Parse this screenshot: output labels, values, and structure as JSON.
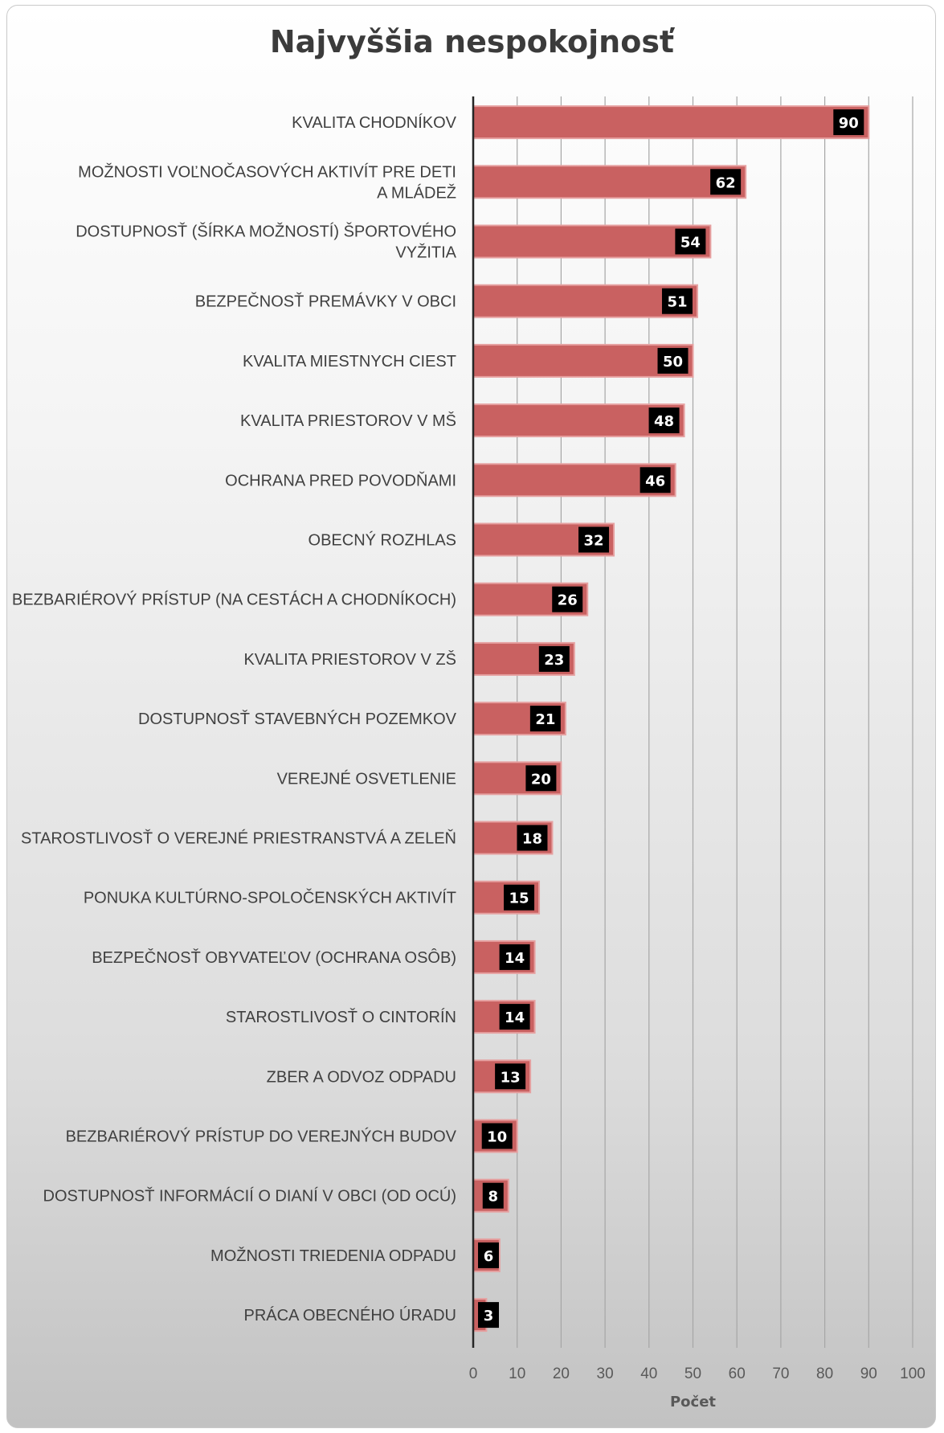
{
  "chart_data": {
    "type": "bar",
    "orientation": "horizontal",
    "title": "Najvyššia nespokojnosť",
    "xlabel": "Počet",
    "ylabel": "",
    "xlim": [
      0,
      100
    ],
    "ticks": [
      0,
      10,
      20,
      30,
      40,
      50,
      60,
      70,
      80,
      90,
      100
    ],
    "grid": true,
    "legend": "none",
    "bar_color": "#c96161",
    "label_box_color": "#000000",
    "categories": [
      [
        "KVALITA CHODNÍKOV"
      ],
      [
        "MOŽNOSTI VOĽNOČASOVÝCH AKTIVÍT PRE DETI",
        "A MLÁDEŽ"
      ],
      [
        "DOSTUPNOSŤ (ŠÍRKA MOŽNOSTÍ) ŠPORTOVÉHO",
        "VYŽITIA"
      ],
      [
        "BEZPEČNOSŤ PREMÁVKY V OBCI"
      ],
      [
        "KVALITA MIESTNYCH CIEST"
      ],
      [
        "KVALITA PRIESTOROV V MŠ"
      ],
      [
        "OCHRANA PRED POVODŇAMI"
      ],
      [
        "OBECNÝ ROZHLAS"
      ],
      [
        "BEZBARIÉROVÝ PRÍSTUP (NA CESTÁCH A CHODNÍKOCH)"
      ],
      [
        "KVALITA PRIESTOROV V ZŠ"
      ],
      [
        "DOSTUPNOSŤ STAVEBNÝCH POZEMKOV"
      ],
      [
        "VEREJNÉ OSVETLENIE"
      ],
      [
        "STAROSTLIVOSŤ O VEREJNÉ PRIESTRANSTVÁ A ZELEŇ"
      ],
      [
        "PONUKA KULTÚRNO-SPOLOČENSKÝCH AKTIVÍT"
      ],
      [
        "BEZPEČNOSŤ OBYVATEĽOV (OCHRANA OSÔB)"
      ],
      [
        "STAROSTLIVOSŤ O CINTORÍN"
      ],
      [
        "ZBER A ODVOZ ODPADU"
      ],
      [
        "BEZBARIÉROVÝ PRÍSTUP DO VEREJNÝCH BUDOV"
      ],
      [
        "DOSTUPNOSŤ INFORMÁCIÍ O DIANÍ V OBCI (OD OCÚ)"
      ],
      [
        "MOŽNOSTI TRIEDENIA ODPADU"
      ],
      [
        "PRÁCA OBECNÉHO ÚRADU"
      ]
    ],
    "values": [
      90,
      62,
      54,
      51,
      50,
      48,
      46,
      32,
      26,
      23,
      21,
      20,
      18,
      15,
      14,
      14,
      13,
      10,
      8,
      6,
      3
    ]
  }
}
